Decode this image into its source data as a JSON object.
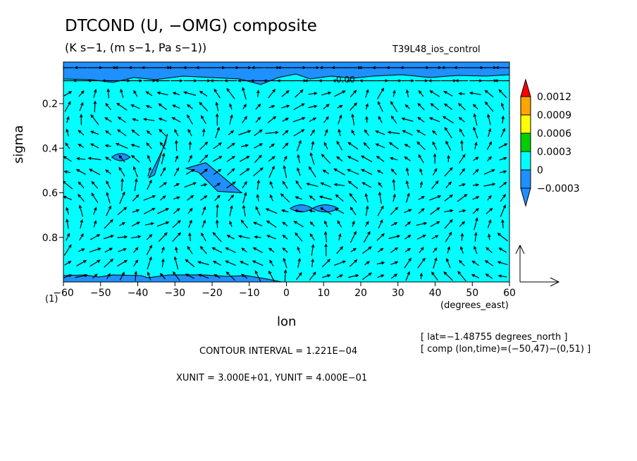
{
  "header": {
    "title": "DTCOND (U, −OMG) composite",
    "units": "(K s−1, (m s−1, Pa s−1))",
    "run": "T39L48_ios_control"
  },
  "footer": {
    "contour_interval": "CONTOUR INTERVAL = 1.221E−04",
    "units_line": "XUNIT = 3.000E+01, YUNIT = 4.000E−01",
    "lat_note": "[ lat=−1.48755 degrees_north ]",
    "comp_note": "[ comp (lon,time)=(−50,47)−(0,51) ]"
  },
  "colors": {
    "background_field": "#00ffff",
    "negative_field": "#1e90ff",
    "bar_colors": [
      "#1e90ff",
      "#00ffff",
      "#00d000",
      "#ffff00",
      "#ffa500",
      "#ff0000"
    ]
  },
  "chart_data": {
    "type": "heatmap",
    "subtype": "filled contour with vector overlay",
    "xlabel": "lon",
    "xunit_label": "(degrees_east)",
    "ylabel": "sigma",
    "y_corner_label": "(1)",
    "xlim": [
      -60,
      60
    ],
    "ylim": [
      1.0,
      0.01
    ],
    "x_ticks": [
      -60,
      -50,
      -40,
      -30,
      -20,
      -10,
      0,
      10,
      20,
      30,
      40,
      50,
      60
    ],
    "x_tick_labels": [
      "−60",
      "−50",
      "−40",
      "−30",
      "−20",
      "−10",
      "0",
      "10",
      "20",
      "30",
      "40",
      "50",
      "60"
    ],
    "y_ticks": [
      0.2,
      0.4,
      0.6,
      0.8
    ],
    "y_tick_labels": [
      "0.2",
      "0.4",
      "0.6",
      "0.8"
    ],
    "contour_label": "0.00",
    "colorbar": {
      "levels": [
        "0.0012",
        "0.0009",
        "0.0006",
        "0.0003",
        "0",
        "−0.0003"
      ],
      "bins": [
        "<−0.0003",
        "−0.0003..0",
        "0..0.0003",
        "0.0003..0.0006",
        "0.0006..0.0009",
        "0.0009..0.0012",
        ">0.0012"
      ]
    },
    "negative_patches": [
      {
        "lon_range": [
          -47,
          -42
        ],
        "sigma_range": [
          0.43,
          0.45
        ]
      },
      {
        "lon_range": [
          -37,
          -32
        ],
        "sigma_range": [
          0.38,
          0.52
        ]
      },
      {
        "lon_range": [
          -27,
          -12
        ],
        "sigma_range": [
          0.49,
          0.6
        ]
      },
      {
        "lon_range": [
          1,
          7
        ],
        "sigma_range": [
          0.66,
          0.68
        ]
      },
      {
        "lon_range": [
          7,
          14
        ],
        "sigma_range": [
          0.66,
          0.68
        ]
      }
    ]
  }
}
